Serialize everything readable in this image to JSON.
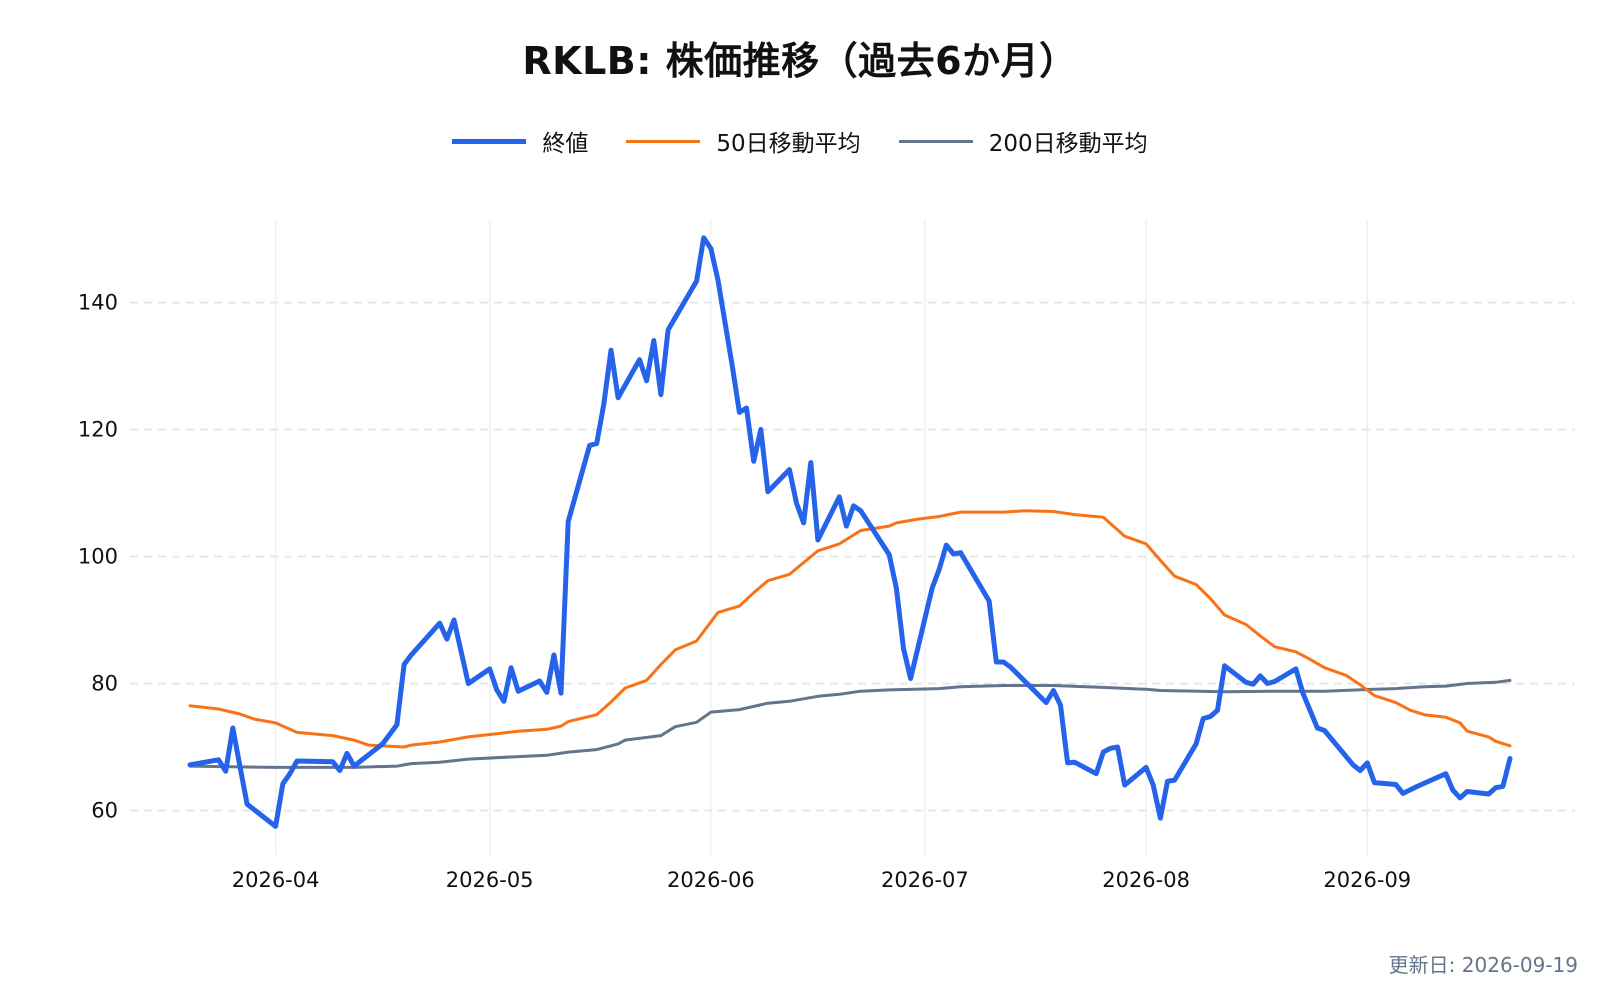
{
  "title": "RKLB: 株価推移（過去6か月）",
  "footer": "更新日: 2026-09-19",
  "chart_data": {
    "type": "line",
    "title": "RKLB: 株価推移（過去6か月）",
    "xlabel": "",
    "ylabel": "",
    "x_range": [
      "2026-03-20",
      "2026-09-19"
    ],
    "ylim": [
      53,
      153
    ],
    "y_ticks": [
      60,
      80,
      100,
      120,
      140
    ],
    "x_ticks": [
      "2026-04",
      "2026-05",
      "2026-06",
      "2026-07",
      "2026-08",
      "2026-09"
    ],
    "grid": true,
    "legend_position": "top-center",
    "series": [
      {
        "name": "終値",
        "color": "#2563eb",
        "points": [
          [
            "2026-03-20",
            67.2
          ],
          [
            "2026-03-24",
            68.0
          ],
          [
            "2026-03-25",
            66.2
          ],
          [
            "2026-03-26",
            73.0
          ],
          [
            "2026-03-27",
            67.0
          ],
          [
            "2026-03-28",
            61.0
          ],
          [
            "2026-04-01",
            57.5
          ],
          [
            "2026-04-02",
            64.2
          ],
          [
            "2026-04-03",
            65.8
          ],
          [
            "2026-04-04",
            67.8
          ],
          [
            "2026-04-09",
            67.7
          ],
          [
            "2026-04-10",
            66.3
          ],
          [
            "2026-04-11",
            69.0
          ],
          [
            "2026-04-12",
            67.0
          ],
          [
            "2026-04-16",
            70.5
          ],
          [
            "2026-04-18",
            73.5
          ],
          [
            "2026-04-19",
            83.0
          ],
          [
            "2026-04-20",
            84.5
          ],
          [
            "2026-04-24",
            89.5
          ],
          [
            "2026-04-25",
            87.0
          ],
          [
            "2026-04-26",
            90.0
          ],
          [
            "2026-04-28",
            80.0
          ],
          [
            "2026-05-01",
            82.3
          ],
          [
            "2026-05-02",
            79.0
          ],
          [
            "2026-05-03",
            77.2
          ],
          [
            "2026-05-04",
            82.5
          ],
          [
            "2026-05-05",
            78.8
          ],
          [
            "2026-05-08",
            80.4
          ],
          [
            "2026-05-09",
            78.6
          ],
          [
            "2026-05-10",
            84.5
          ],
          [
            "2026-05-11",
            78.5
          ],
          [
            "2026-05-12",
            105.5
          ],
          [
            "2026-05-15",
            117.5
          ],
          [
            "2026-05-16",
            117.8
          ],
          [
            "2026-05-17",
            124.0
          ],
          [
            "2026-05-18",
            132.5
          ],
          [
            "2026-05-19",
            125.0
          ],
          [
            "2026-05-22",
            131.0
          ],
          [
            "2026-05-23",
            127.7
          ],
          [
            "2026-05-24",
            134.0
          ],
          [
            "2026-05-25",
            125.5
          ],
          [
            "2026-05-26",
            135.7
          ],
          [
            "2026-05-30",
            143.4
          ],
          [
            "2026-05-31",
            150.2
          ],
          [
            "2026-06-01",
            148.5
          ],
          [
            "2026-06-02",
            143.5
          ],
          [
            "2026-06-04",
            130.0
          ],
          [
            "2026-06-05",
            122.7
          ],
          [
            "2026-06-06",
            123.4
          ],
          [
            "2026-06-07",
            115.0
          ],
          [
            "2026-06-08",
            120.0
          ],
          [
            "2026-06-09",
            110.2
          ],
          [
            "2026-06-12",
            113.7
          ],
          [
            "2026-06-13",
            108.4
          ],
          [
            "2026-06-14",
            105.3
          ],
          [
            "2026-06-15",
            114.8
          ],
          [
            "2026-06-16",
            102.6
          ],
          [
            "2026-06-19",
            109.4
          ],
          [
            "2026-06-20",
            104.8
          ],
          [
            "2026-06-21",
            108.0
          ],
          [
            "2026-06-22",
            107.2
          ],
          [
            "2026-06-26",
            100.3
          ],
          [
            "2026-06-27",
            95.0
          ],
          [
            "2026-06-28",
            85.5
          ],
          [
            "2026-06-29",
            80.8
          ],
          [
            "2026-07-02",
            95.0
          ],
          [
            "2026-07-03",
            98.0
          ],
          [
            "2026-07-04",
            101.8
          ],
          [
            "2026-07-05",
            100.4
          ],
          [
            "2026-07-06",
            100.6
          ],
          [
            "2026-07-10",
            93.0
          ],
          [
            "2026-07-11",
            83.4
          ],
          [
            "2026-07-12",
            83.4
          ],
          [
            "2026-07-13",
            82.6
          ],
          [
            "2026-07-18",
            77.0
          ],
          [
            "2026-07-19",
            78.9
          ],
          [
            "2026-07-20",
            76.6
          ],
          [
            "2026-07-21",
            67.5
          ],
          [
            "2026-07-22",
            67.6
          ],
          [
            "2026-07-25",
            65.8
          ],
          [
            "2026-07-26",
            69.2
          ],
          [
            "2026-07-27",
            69.8
          ],
          [
            "2026-07-28",
            70.0
          ],
          [
            "2026-07-29",
            64.0
          ],
          [
            "2026-08-01",
            66.8
          ],
          [
            "2026-08-02",
            64.0
          ],
          [
            "2026-08-03",
            58.8
          ],
          [
            "2026-08-04",
            64.6
          ],
          [
            "2026-08-05",
            64.8
          ],
          [
            "2026-08-08",
            70.5
          ],
          [
            "2026-08-09",
            74.5
          ],
          [
            "2026-08-10",
            74.8
          ],
          [
            "2026-08-11",
            75.8
          ],
          [
            "2026-08-12",
            82.8
          ],
          [
            "2026-08-15",
            80.2
          ],
          [
            "2026-08-16",
            79.9
          ],
          [
            "2026-08-17",
            81.2
          ],
          [
            "2026-08-18",
            80.0
          ],
          [
            "2026-08-19",
            80.3
          ],
          [
            "2026-08-22",
            82.3
          ],
          [
            "2026-08-23",
            78.4
          ],
          [
            "2026-08-25",
            73.0
          ],
          [
            "2026-08-26",
            72.6
          ],
          [
            "2026-08-30",
            67.2
          ],
          [
            "2026-08-31",
            66.3
          ],
          [
            "2026-09-01",
            67.5
          ],
          [
            "2026-09-02",
            64.4
          ],
          [
            "2026-09-05",
            64.1
          ],
          [
            "2026-09-06",
            62.7
          ],
          [
            "2026-09-08",
            63.8
          ],
          [
            "2026-09-12",
            65.8
          ],
          [
            "2026-09-13",
            63.2
          ],
          [
            "2026-09-14",
            62.0
          ],
          [
            "2026-09-15",
            63.0
          ],
          [
            "2026-09-18",
            62.6
          ],
          [
            "2026-09-19",
            63.6
          ],
          [
            "2026-09-20",
            63.8
          ],
          [
            "2026-09-21",
            68.2
          ]
        ]
      },
      {
        "name": "50日移動平均",
        "color": "#f97316",
        "points": [
          [
            "2026-03-20",
            76.5
          ],
          [
            "2026-03-24",
            76.0
          ],
          [
            "2026-03-27",
            75.2
          ],
          [
            "2026-03-29",
            74.4
          ],
          [
            "2026-04-01",
            73.8
          ],
          [
            "2026-04-04",
            72.3
          ],
          [
            "2026-04-09",
            71.8
          ],
          [
            "2026-04-12",
            71.1
          ],
          [
            "2026-04-14",
            70.3
          ],
          [
            "2026-04-19",
            70.0
          ],
          [
            "2026-04-20",
            70.3
          ],
          [
            "2026-04-24",
            70.8
          ],
          [
            "2026-04-28",
            71.6
          ],
          [
            "2026-05-02",
            72.1
          ],
          [
            "2026-05-05",
            72.5
          ],
          [
            "2026-05-09",
            72.8
          ],
          [
            "2026-05-11",
            73.3
          ],
          [
            "2026-05-12",
            74.0
          ],
          [
            "2026-05-16",
            75.1
          ],
          [
            "2026-05-18",
            77.1
          ],
          [
            "2026-05-20",
            79.3
          ],
          [
            "2026-05-23",
            80.5
          ],
          [
            "2026-05-25",
            83.0
          ],
          [
            "2026-05-27",
            85.3
          ],
          [
            "2026-05-30",
            86.7
          ],
          [
            "2026-06-02",
            91.2
          ],
          [
            "2026-06-05",
            92.2
          ],
          [
            "2026-06-07",
            94.3
          ],
          [
            "2026-06-09",
            96.2
          ],
          [
            "2026-06-12",
            97.2
          ],
          [
            "2026-06-16",
            100.9
          ],
          [
            "2026-06-19",
            102.0
          ],
          [
            "2026-06-22",
            104.1
          ],
          [
            "2026-06-26",
            104.8
          ],
          [
            "2026-06-27",
            105.3
          ],
          [
            "2026-06-30",
            105.9
          ],
          [
            "2026-07-03",
            106.3
          ],
          [
            "2026-07-06",
            107.0
          ],
          [
            "2026-07-12",
            107.0
          ],
          [
            "2026-07-15",
            107.2
          ],
          [
            "2026-07-19",
            107.1
          ],
          [
            "2026-07-22",
            106.6
          ],
          [
            "2026-07-26",
            106.2
          ],
          [
            "2026-07-29",
            103.2
          ],
          [
            "2026-08-01",
            102.0
          ],
          [
            "2026-08-03",
            99.4
          ],
          [
            "2026-08-05",
            96.9
          ],
          [
            "2026-08-08",
            95.6
          ],
          [
            "2026-08-10",
            93.4
          ],
          [
            "2026-08-12",
            90.8
          ],
          [
            "2026-08-15",
            89.3
          ],
          [
            "2026-08-17",
            87.5
          ],
          [
            "2026-08-19",
            85.8
          ],
          [
            "2026-08-22",
            85.0
          ],
          [
            "2026-08-24",
            83.8
          ],
          [
            "2026-08-26",
            82.5
          ],
          [
            "2026-08-29",
            81.3
          ],
          [
            "2026-08-31",
            79.8
          ],
          [
            "2026-09-02",
            78.1
          ],
          [
            "2026-09-05",
            77.0
          ],
          [
            "2026-09-07",
            75.8
          ],
          [
            "2026-09-09",
            75.1
          ],
          [
            "2026-09-12",
            74.7
          ],
          [
            "2026-09-14",
            73.8
          ],
          [
            "2026-09-15",
            72.5
          ],
          [
            "2026-09-18",
            71.6
          ],
          [
            "2026-09-19",
            70.9
          ],
          [
            "2026-09-21",
            70.2
          ]
        ]
      },
      {
        "name": "200日移動平均",
        "color": "#64748b",
        "points": [
          [
            "2026-03-20",
            67.0
          ],
          [
            "2026-04-01",
            66.8
          ],
          [
            "2026-04-12",
            66.8
          ],
          [
            "2026-04-18",
            67.0
          ],
          [
            "2026-04-20",
            67.4
          ],
          [
            "2026-04-24",
            67.6
          ],
          [
            "2026-04-28",
            68.1
          ],
          [
            "2026-05-05",
            68.5
          ],
          [
            "2026-05-09",
            68.7
          ],
          [
            "2026-05-12",
            69.2
          ],
          [
            "2026-05-16",
            69.6
          ],
          [
            "2026-05-19",
            70.5
          ],
          [
            "2026-05-20",
            71.1
          ],
          [
            "2026-05-25",
            71.8
          ],
          [
            "2026-05-27",
            73.2
          ],
          [
            "2026-05-30",
            73.9
          ],
          [
            "2026-06-01",
            75.5
          ],
          [
            "2026-06-05",
            75.9
          ],
          [
            "2026-06-09",
            76.9
          ],
          [
            "2026-06-12",
            77.2
          ],
          [
            "2026-06-16",
            78.0
          ],
          [
            "2026-06-19",
            78.3
          ],
          [
            "2026-06-22",
            78.8
          ],
          [
            "2026-06-26",
            79.0
          ],
          [
            "2026-07-03",
            79.2
          ],
          [
            "2026-07-06",
            79.5
          ],
          [
            "2026-07-12",
            79.7
          ],
          [
            "2026-07-19",
            79.7
          ],
          [
            "2026-07-26",
            79.4
          ],
          [
            "2026-08-01",
            79.1
          ],
          [
            "2026-08-03",
            78.9
          ],
          [
            "2026-08-12",
            78.7
          ],
          [
            "2026-08-19",
            78.8
          ],
          [
            "2026-08-26",
            78.8
          ],
          [
            "2026-09-02",
            79.1
          ],
          [
            "2026-09-05",
            79.2
          ],
          [
            "2026-09-09",
            79.5
          ],
          [
            "2026-09-12",
            79.6
          ],
          [
            "2026-09-15",
            80.0
          ],
          [
            "2026-09-19",
            80.2
          ],
          [
            "2026-09-21",
            80.5
          ]
        ]
      }
    ]
  }
}
